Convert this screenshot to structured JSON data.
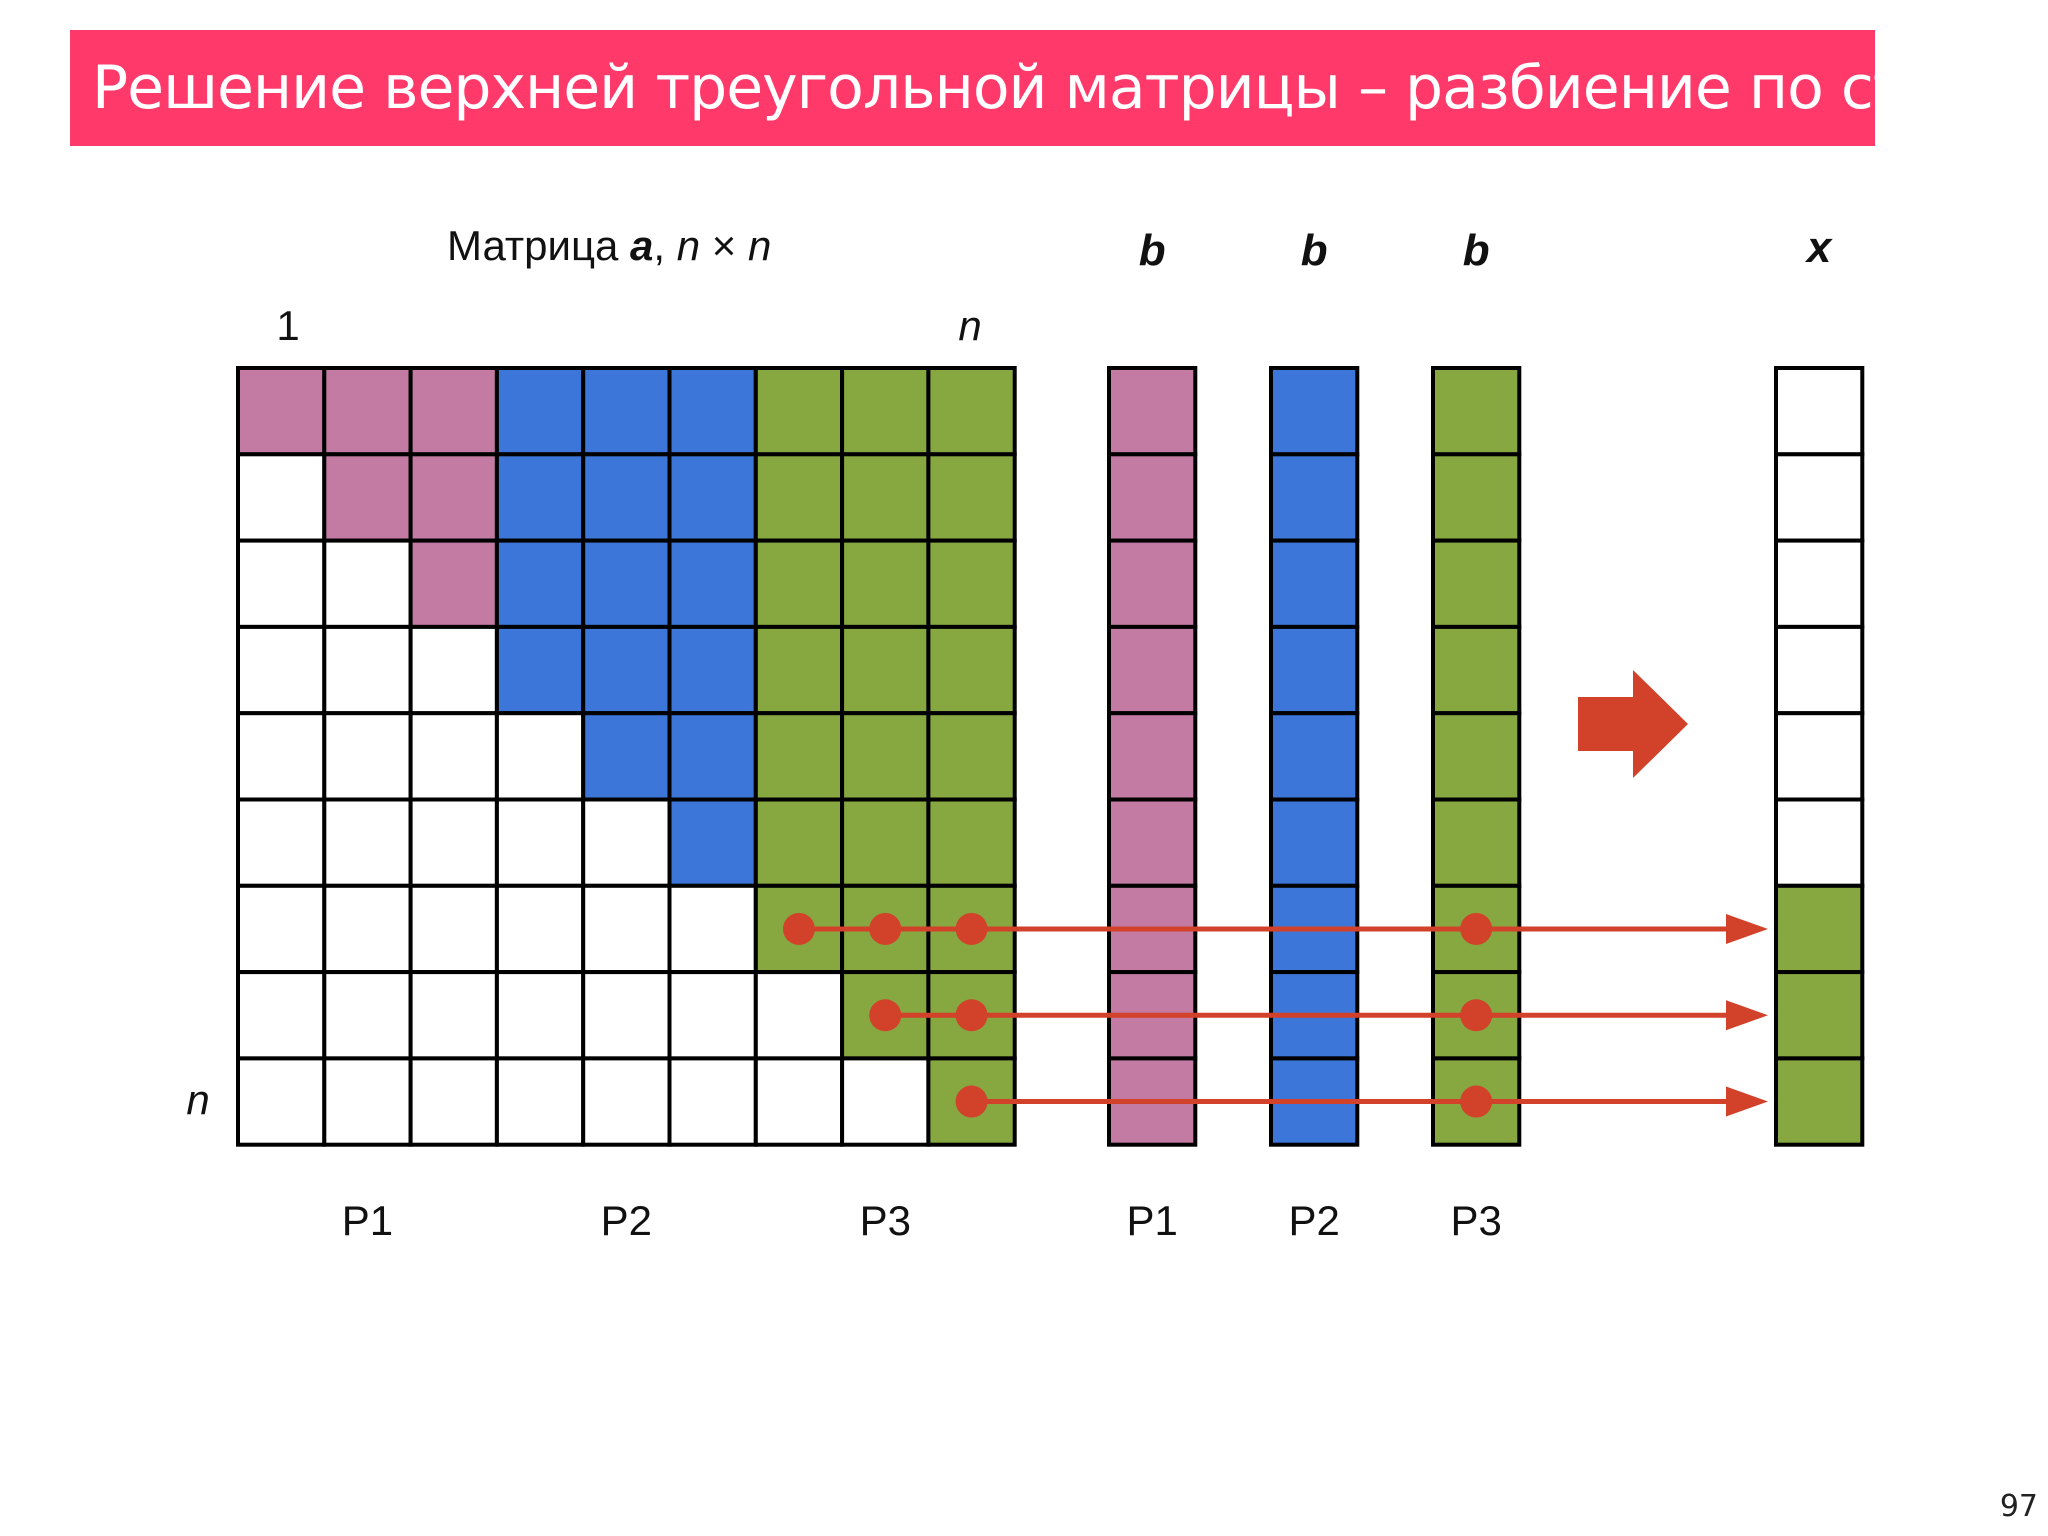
{
  "slide": {
    "title": "Решение верхней треугольной матрицы – разбиение по столбцам",
    "page_number": "97"
  },
  "matrix": {
    "caption_prefix": "Матрица ",
    "caption_var": "a",
    "caption_sep": ", ",
    "caption_n1": "n",
    "caption_times": " × ",
    "caption_n2": "n",
    "col_start_label": "1",
    "col_end_label": "n",
    "row_end_label": "n",
    "size": 9,
    "col_owner": [
      0,
      0,
      0,
      1,
      1,
      1,
      2,
      2,
      2
    ],
    "partition_labels": [
      "P1",
      "P2",
      "P3"
    ]
  },
  "vectors": [
    {
      "label": "b",
      "owner": 0,
      "partition_label": "P1"
    },
    {
      "label": "b",
      "owner": 1,
      "partition_label": "P2"
    },
    {
      "label": "b",
      "owner": 2,
      "partition_label": "P3"
    }
  ],
  "result": {
    "label": "x",
    "filled_rows": [
      6,
      7,
      8
    ],
    "filled_owner": 2
  },
  "arrows": [
    {
      "row": 6,
      "matrix_dots": [
        6,
        7,
        8
      ]
    },
    {
      "row": 7,
      "matrix_dots": [
        7,
        8
      ]
    },
    {
      "row": 8,
      "matrix_dots": [
        8
      ]
    }
  ],
  "colors": {
    "p1": "#c47ba3",
    "p2": "#3b76d8",
    "p3": "#87a840",
    "arrow": "#d2412a",
    "title_bg": "#ff3a6b"
  }
}
